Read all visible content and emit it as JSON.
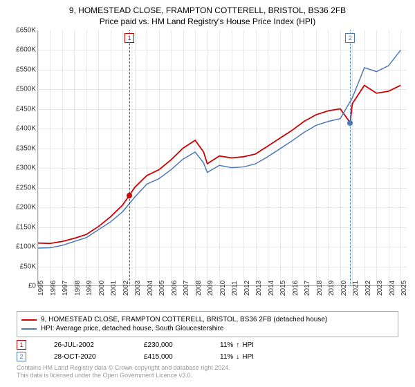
{
  "title": "9, HOMESTEAD CLOSE, FRAMPTON COTTERELL, BRISTOL, BS36 2FB",
  "subtitle": "Price paid vs. HM Land Registry's House Price Index (HPI)",
  "chart": {
    "type": "line",
    "ylim": [
      0,
      650000
    ],
    "ytick_step": 50000,
    "y_ticks": [
      "£0",
      "£50K",
      "£100K",
      "£150K",
      "£200K",
      "£250K",
      "£300K",
      "£350K",
      "£400K",
      "£450K",
      "£500K",
      "£550K",
      "£600K",
      "£650K"
    ],
    "x_years": [
      1995,
      1996,
      1997,
      1998,
      1999,
      2000,
      2001,
      2002,
      2003,
      2004,
      2005,
      2006,
      2007,
      2008,
      2009,
      2010,
      2011,
      2012,
      2013,
      2014,
      2015,
      2016,
      2017,
      2018,
      2019,
      2020,
      2021,
      2022,
      2023,
      2024,
      2025
    ],
    "xlim": [
      1995,
      2025.5
    ],
    "grid_color": "#e6e6e6",
    "background_color": "#ffffff",
    "axis_color": "#a9a9a9",
    "series": [
      {
        "label": "9, HOMESTEAD CLOSE, FRAMPTON COTTERELL, BRISTOL, BS36 2FB (detached house)",
        "color": "#cc0000",
        "width": 1.8,
        "data": [
          [
            1995,
            108000
          ],
          [
            1996,
            107000
          ],
          [
            1997,
            112000
          ],
          [
            1998,
            120000
          ],
          [
            1999,
            130000
          ],
          [
            2000,
            150000
          ],
          [
            2001,
            175000
          ],
          [
            2002,
            205000
          ],
          [
            2002.56,
            230000
          ],
          [
            2003,
            250000
          ],
          [
            2004,
            280000
          ],
          [
            2005,
            295000
          ],
          [
            2006,
            320000
          ],
          [
            2007,
            350000
          ],
          [
            2008,
            370000
          ],
          [
            2008.7,
            340000
          ],
          [
            2009,
            310000
          ],
          [
            2010,
            330000
          ],
          [
            2011,
            325000
          ],
          [
            2012,
            328000
          ],
          [
            2013,
            335000
          ],
          [
            2014,
            355000
          ],
          [
            2015,
            375000
          ],
          [
            2016,
            395000
          ],
          [
            2017,
            418000
          ],
          [
            2018,
            435000
          ],
          [
            2019,
            445000
          ],
          [
            2020,
            450000
          ],
          [
            2020.82,
            415000
          ],
          [
            2021,
            463000
          ],
          [
            2022,
            510000
          ],
          [
            2023,
            490000
          ],
          [
            2024,
            495000
          ],
          [
            2025,
            510000
          ]
        ]
      },
      {
        "label": "HPI: Average price, detached house, South Gloucestershire",
        "color": "#4d79b6",
        "width": 1.5,
        "data": [
          [
            1995,
            95000
          ],
          [
            1996,
            96000
          ],
          [
            1997,
            102000
          ],
          [
            1998,
            112000
          ],
          [
            1999,
            122000
          ],
          [
            2000,
            142000
          ],
          [
            2001,
            162000
          ],
          [
            2002,
            188000
          ],
          [
            2003,
            225000
          ],
          [
            2004,
            258000
          ],
          [
            2005,
            272000
          ],
          [
            2006,
            295000
          ],
          [
            2007,
            322000
          ],
          [
            2008,
            340000
          ],
          [
            2008.7,
            312000
          ],
          [
            2009,
            288000
          ],
          [
            2010,
            306000
          ],
          [
            2011,
            300000
          ],
          [
            2012,
            302000
          ],
          [
            2013,
            310000
          ],
          [
            2014,
            328000
          ],
          [
            2015,
            348000
          ],
          [
            2016,
            368000
          ],
          [
            2017,
            390000
          ],
          [
            2018,
            408000
          ],
          [
            2019,
            418000
          ],
          [
            2020,
            425000
          ],
          [
            2021,
            478000
          ],
          [
            2022,
            555000
          ],
          [
            2023,
            545000
          ],
          [
            2024,
            560000
          ],
          [
            2025,
            600000
          ]
        ]
      }
    ],
    "markers": [
      {
        "n": "1",
        "color": "#cc0000",
        "year": 2002.56,
        "value": 230000
      },
      {
        "n": "2",
        "color": "#4d79b6",
        "year": 2020.82,
        "value": 415000
      }
    ]
  },
  "legend_items": [
    {
      "color": "#cc0000",
      "label": "9, HOMESTEAD CLOSE, FRAMPTON COTTERELL, BRISTOL, BS36 2FB (detached house)"
    },
    {
      "color": "#4d79b6",
      "label": "HPI: Average price, detached house, South Gloucestershire"
    }
  ],
  "sales": [
    {
      "n": "1",
      "color": "#cc0000",
      "date": "26-JUL-2002",
      "price": "£230,000",
      "change": "11%",
      "arrow": "↑",
      "vs": "HPI"
    },
    {
      "n": "2",
      "color": "#4d79b6",
      "date": "28-OCT-2020",
      "price": "£415,000",
      "change": "11%",
      "arrow": "↓",
      "vs": "HPI"
    }
  ],
  "footer": {
    "line1": "Contains HM Land Registry data © Crown copyright and database right 2024.",
    "line2": "This data is licensed under the Open Government Licence v3.0."
  }
}
